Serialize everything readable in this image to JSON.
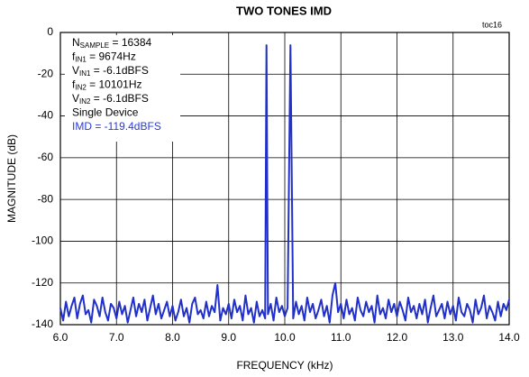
{
  "chart_data": {
    "type": "line",
    "title": "TWO TONES IMD",
    "corner_label": "toc16",
    "xlabel": "FREQUENCY (kHz)",
    "ylabel": "MAGNITUDE (dB)",
    "xlim": [
      6,
      14
    ],
    "ylim": [
      -140,
      0
    ],
    "xticks": [
      {
        "value": 6,
        "label": "6.0"
      },
      {
        "value": 7,
        "label": "7.0"
      },
      {
        "value": 8,
        "label": "8.0"
      },
      {
        "value": 9,
        "label": "9.0"
      },
      {
        "value": 10,
        "label": "10.0"
      },
      {
        "value": 11,
        "label": "11.0"
      },
      {
        "value": 12,
        "label": "12.0"
      },
      {
        "value": 13,
        "label": "13.0"
      },
      {
        "value": 14,
        "label": "14.0"
      }
    ],
    "yticks": [
      0,
      -20,
      -40,
      -60,
      -80,
      -100,
      -120,
      -140
    ],
    "grid": true,
    "annotations": [
      {
        "base": "N",
        "sub": "SAMPLE",
        "text": " = 16384"
      },
      {
        "base": "f",
        "sub": "IN1",
        "text": " = 9674Hz"
      },
      {
        "base": "V",
        "sub": "IN1",
        "text": " = -6.1dBFS"
      },
      {
        "base": "f",
        "sub": "IN2",
        "text": " = 10101Hz"
      },
      {
        "base": "V",
        "sub": "IN2",
        "text": " = -6.1dBFS"
      },
      {
        "text": "Single Device"
      },
      {
        "text": "IMD = -119.4dBFS",
        "color": "#2b3bd6"
      }
    ],
    "series": [
      {
        "color": "#2030c8",
        "x": [
          6.0,
          6.05,
          6.1,
          6.15,
          6.2,
          6.25,
          6.3,
          6.35,
          6.4,
          6.45,
          6.5,
          6.55,
          6.6,
          6.65,
          6.7,
          6.75,
          6.8,
          6.85,
          6.9,
          6.95,
          7.0,
          7.05,
          7.1,
          7.15,
          7.2,
          7.25,
          7.3,
          7.35,
          7.4,
          7.45,
          7.5,
          7.55,
          7.6,
          7.65,
          7.7,
          7.75,
          7.8,
          7.85,
          7.9,
          7.95,
          8.0,
          8.05,
          8.1,
          8.15,
          8.2,
          8.25,
          8.3,
          8.35,
          8.4,
          8.45,
          8.5,
          8.55,
          8.6,
          8.65,
          8.7,
          8.75,
          8.8,
          8.85,
          8.9,
          8.95,
          9.0,
          9.05,
          9.1,
          9.15,
          9.2,
          9.25,
          9.3,
          9.35,
          9.4,
          9.45,
          9.5,
          9.55,
          9.6,
          9.65,
          9.674,
          9.7,
          9.75,
          9.8,
          9.85,
          9.9,
          9.95,
          10.0,
          10.05,
          10.101,
          10.15,
          10.2,
          10.25,
          10.3,
          10.35,
          10.4,
          10.45,
          10.5,
          10.55,
          10.6,
          10.65,
          10.7,
          10.75,
          10.8,
          10.85,
          10.9,
          10.95,
          11.0,
          11.05,
          11.1,
          11.15,
          11.2,
          11.25,
          11.3,
          11.35,
          11.4,
          11.45,
          11.5,
          11.55,
          11.6,
          11.65,
          11.7,
          11.75,
          11.8,
          11.85,
          11.9,
          11.95,
          12.0,
          12.05,
          12.1,
          12.15,
          12.2,
          12.25,
          12.3,
          12.35,
          12.4,
          12.45,
          12.5,
          12.55,
          12.6,
          12.65,
          12.7,
          12.75,
          12.8,
          12.85,
          12.9,
          12.95,
          13.0,
          13.05,
          13.1,
          13.15,
          13.2,
          13.25,
          13.3,
          13.35,
          13.4,
          13.45,
          13.5,
          13.55,
          13.6,
          13.65,
          13.7,
          13.75,
          13.8,
          13.85,
          13.9,
          13.95,
          14.0
        ],
        "values": [
          -132,
          -138,
          -129,
          -136,
          -131,
          -127,
          -137,
          -130,
          -126,
          -135,
          -133,
          -139,
          -128,
          -131,
          -136,
          -127,
          -134,
          -138,
          -130,
          -132,
          -137,
          -129,
          -135,
          -131,
          -139,
          -133,
          -127,
          -136,
          -130,
          -134,
          -128,
          -138,
          -132,
          -126,
          -135,
          -130,
          -137,
          -133,
          -129,
          -136,
          -131,
          -138,
          -134,
          -128,
          -136,
          -132,
          -139,
          -130,
          -127,
          -135,
          -133,
          -137,
          -129,
          -136,
          -131,
          -134,
          -121,
          -138,
          -132,
          -135,
          -130,
          -137,
          -128,
          -134,
          -131,
          -138,
          -126,
          -135,
          -132,
          -139,
          -129,
          -136,
          -133,
          -137,
          -6.1,
          -135,
          -130,
          -138,
          -127,
          -134,
          -131,
          -136,
          -132,
          -6.1,
          -137,
          -129,
          -135,
          -131,
          -138,
          -127,
          -134,
          -130,
          -137,
          -133,
          -128,
          -136,
          -131,
          -139,
          -126,
          -120,
          -134,
          -130,
          -137,
          -128,
          -135,
          -132,
          -138,
          -127,
          -133,
          -136,
          -129,
          -134,
          -131,
          -139,
          -126,
          -135,
          -132,
          -137,
          -128,
          -134,
          -130,
          -136,
          -129,
          -133,
          -138,
          -127,
          -134,
          -131,
          -137,
          -130,
          -135,
          -128,
          -139,
          -132,
          -126,
          -136,
          -133,
          -130,
          -137,
          -129,
          -135,
          -131,
          -138,
          -127,
          -134,
          -136,
          -130,
          -133,
          -139,
          -128,
          -135,
          -132,
          -126,
          -137,
          -131,
          -134,
          -138,
          -129,
          -136,
          -130,
          -133,
          -128
        ]
      }
    ]
  }
}
